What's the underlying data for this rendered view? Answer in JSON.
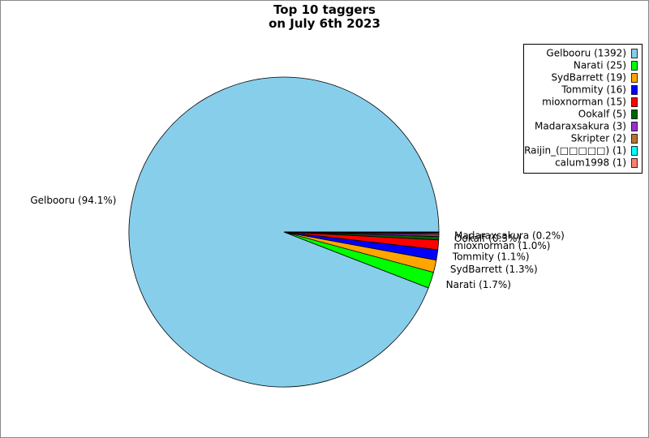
{
  "chart_data": {
    "type": "pie",
    "title": "Top 10 taggers\non July 6th 2023",
    "categories": [
      "Gelbooru",
      "Narati",
      "SydBarrett",
      "Tommity",
      "mioxnorman",
      "Ookalf",
      "Madaraxsakura",
      "Skripter",
      "Raijin_(□□□□□)",
      "calum1998"
    ],
    "values": [
      1392,
      25,
      19,
      16,
      15,
      5,
      3,
      2,
      1,
      1
    ],
    "legend_labels": [
      "Gelbooru (1392)",
      "Narati (25)",
      "SydBarrett (19)",
      "Tommity (16)",
      "mioxnorman (15)",
      "Ookalf (5)",
      "Madaraxsakura (3)",
      "Skripter (2)",
      "Raijin_(□□□□□) (1)",
      "calum1998 (1)"
    ],
    "value_labels": [
      "Gelbooru (94.1%)",
      "Narati (1.7%)",
      "SydBarrett (1.3%)",
      "Tommity (1.1%)",
      "mioxnorman (1.0%)",
      "Ookalf (0.3%)",
      "Madaraxsakura (0.2%)",
      null,
      null,
      null
    ],
    "colors": [
      "#87ceeb",
      "#00ff00",
      "#ffa500",
      "#0000ff",
      "#ff0000",
      "#006400",
      "#9932cc",
      "#b87333",
      "#00ffff",
      "#fa8072"
    ],
    "legend": "upper right"
  }
}
